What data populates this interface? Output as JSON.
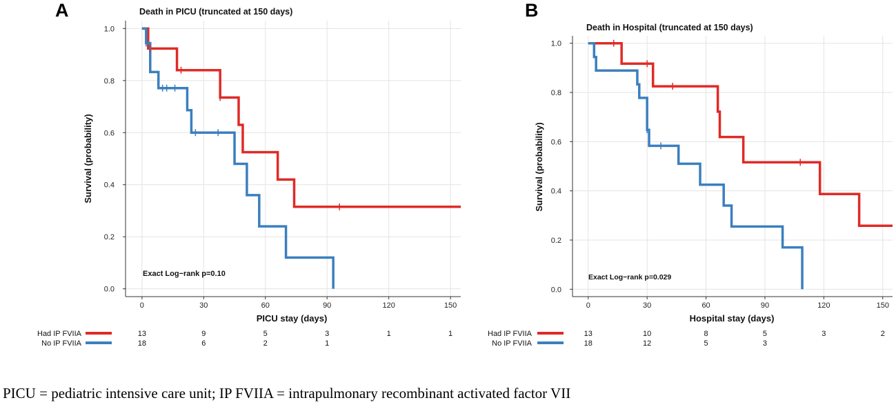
{
  "caption": "PICU = pediatric intensive care unit; IP FVIIA = intrapulmonary recombinant activated factor VII",
  "colors": {
    "had": "#e02a26",
    "no": "#3b7fbf",
    "grid": "#e3e3e3",
    "axis": "#333333"
  },
  "chart_data": [
    {
      "panel_label": "A",
      "type": "line",
      "step": true,
      "title": "Death in PICU (truncated at 150 days)",
      "xlabel": "PICU stay (days)",
      "ylabel": "Survival (probability)",
      "xlim": [
        -8,
        155
      ],
      "ylim": [
        -0.03,
        1.03
      ],
      "xticks": [
        0,
        30,
        60,
        90,
        120,
        150
      ],
      "xtick_labels": [
        "0",
        "30",
        "60",
        "90",
        "120",
        "150"
      ],
      "yticks": [
        0,
        0.2,
        0.4,
        0.6,
        0.8,
        1
      ],
      "ytick_labels": [
        "0.0",
        "0.2",
        "0.4",
        "0.6",
        "0.8",
        "1.0"
      ],
      "annotation": "Exact Log−rank p=0.10",
      "series": [
        {
          "name": "Had IP FVIIA",
          "color_key": "had",
          "x": [
            0,
            3,
            17,
            38,
            47,
            49,
            66,
            74,
            155
          ],
          "y": [
            1.0,
            0.923,
            0.84,
            0.735,
            0.63,
            0.525,
            0.42,
            0.315,
            0.315
          ],
          "censor_x": [
            4,
            19,
            38,
            96
          ],
          "risk_numbers": [
            "13",
            "9",
            "5",
            "3",
            "1",
            "1"
          ]
        },
        {
          "name": "No IP FVIIA",
          "color_key": "no",
          "x": [
            0,
            2,
            4,
            8,
            22,
            24,
            45,
            51,
            57,
            70,
            93,
            93
          ],
          "y": [
            1.0,
            0.944,
            0.833,
            0.771,
            0.686,
            0.6,
            0.48,
            0.36,
            0.24,
            0.12,
            0.12,
            0.0
          ],
          "censor_x": [
            2,
            10,
            12,
            16,
            26,
            37
          ],
          "risk_numbers": [
            "18",
            "6",
            "2",
            "1"
          ]
        }
      ]
    },
    {
      "panel_label": "B",
      "type": "line",
      "step": true,
      "title": "Death in Hospital (truncated at 150 days)",
      "xlabel": "Hospital stay (days)",
      "ylabel": "Survival (probability)",
      "xlim": [
        -8,
        155
      ],
      "ylim": [
        -0.03,
        1.03
      ],
      "xticks": [
        0,
        30,
        60,
        90,
        120,
        150
      ],
      "xtick_labels": [
        "0",
        "30",
        "60",
        "90",
        "120",
        "150"
      ],
      "yticks": [
        0,
        0.2,
        0.4,
        0.6,
        0.8,
        1
      ],
      "ytick_labels": [
        "0.0",
        "0.2",
        "0.4",
        "0.6",
        "0.8",
        "1.0"
      ],
      "annotation": "Exact Log−rank p=0.029",
      "series": [
        {
          "name": "Had IP FVIIA",
          "color_key": "had",
          "x": [
            0,
            17,
            33,
            66,
            67,
            68,
            79,
            118,
            138,
            155
          ],
          "y": [
            1.0,
            0.917,
            0.825,
            0.722,
            0.619,
            0.619,
            0.516,
            0.387,
            0.258,
            0.258
          ],
          "censor_x": [
            13,
            30,
            43,
            108
          ],
          "risk_numbers": [
            "13",
            "10",
            "8",
            "5",
            "3",
            "2"
          ]
        },
        {
          "name": "No IP FVIIA",
          "color_key": "no",
          "x": [
            0,
            3,
            4,
            15,
            25,
            26,
            30,
            31,
            46,
            57,
            69,
            73,
            99,
            109,
            109
          ],
          "y": [
            1.0,
            0.944,
            0.889,
            0.889,
            0.833,
            0.778,
            0.648,
            0.583,
            0.51,
            0.425,
            0.34,
            0.255,
            0.17,
            0.17,
            0.0
          ],
          "censor_x": [
            30,
            37
          ],
          "risk_numbers": [
            "18",
            "12",
            "5",
            "3"
          ]
        }
      ]
    }
  ]
}
